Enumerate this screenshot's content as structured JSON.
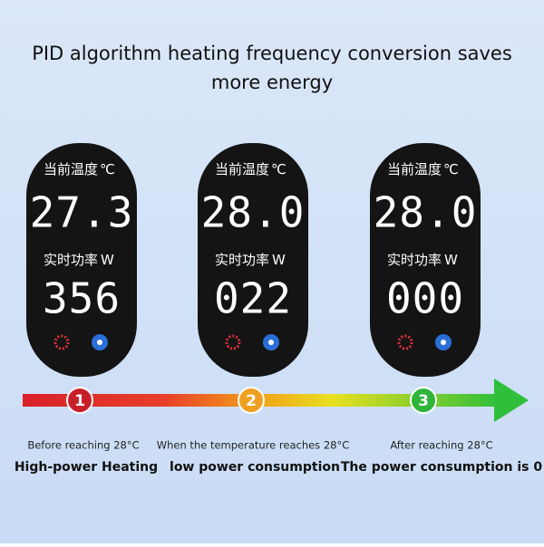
{
  "title_lines": [
    "PID algorithm heating frequency conversion saves",
    "more energy"
  ],
  "panels": [
    {
      "temp_label": "当前温度",
      "temp_unit": "℃",
      "temp": "27.3",
      "power_label": "实时功率",
      "power_unit": "W",
      "power": "356"
    },
    {
      "temp_label": "当前温度",
      "temp_unit": "℃",
      "temp": "28.0",
      "power_label": "实时功率",
      "power_unit": "W",
      "power": "022"
    },
    {
      "temp_label": "当前温度",
      "temp_unit": "℃",
      "temp": "28.0",
      "power_label": "实时功率",
      "power_unit": "W",
      "power": "000"
    }
  ],
  "steps": [
    {
      "number": "1",
      "caption": "Before reaching 28°C",
      "heading": "High-power Heating"
    },
    {
      "number": "2",
      "caption": "When the temperature reaches 28°C",
      "heading": "low power consumption"
    },
    {
      "number": "3",
      "caption": "After reaching 28°C",
      "heading": "The power consumption is 0"
    }
  ]
}
